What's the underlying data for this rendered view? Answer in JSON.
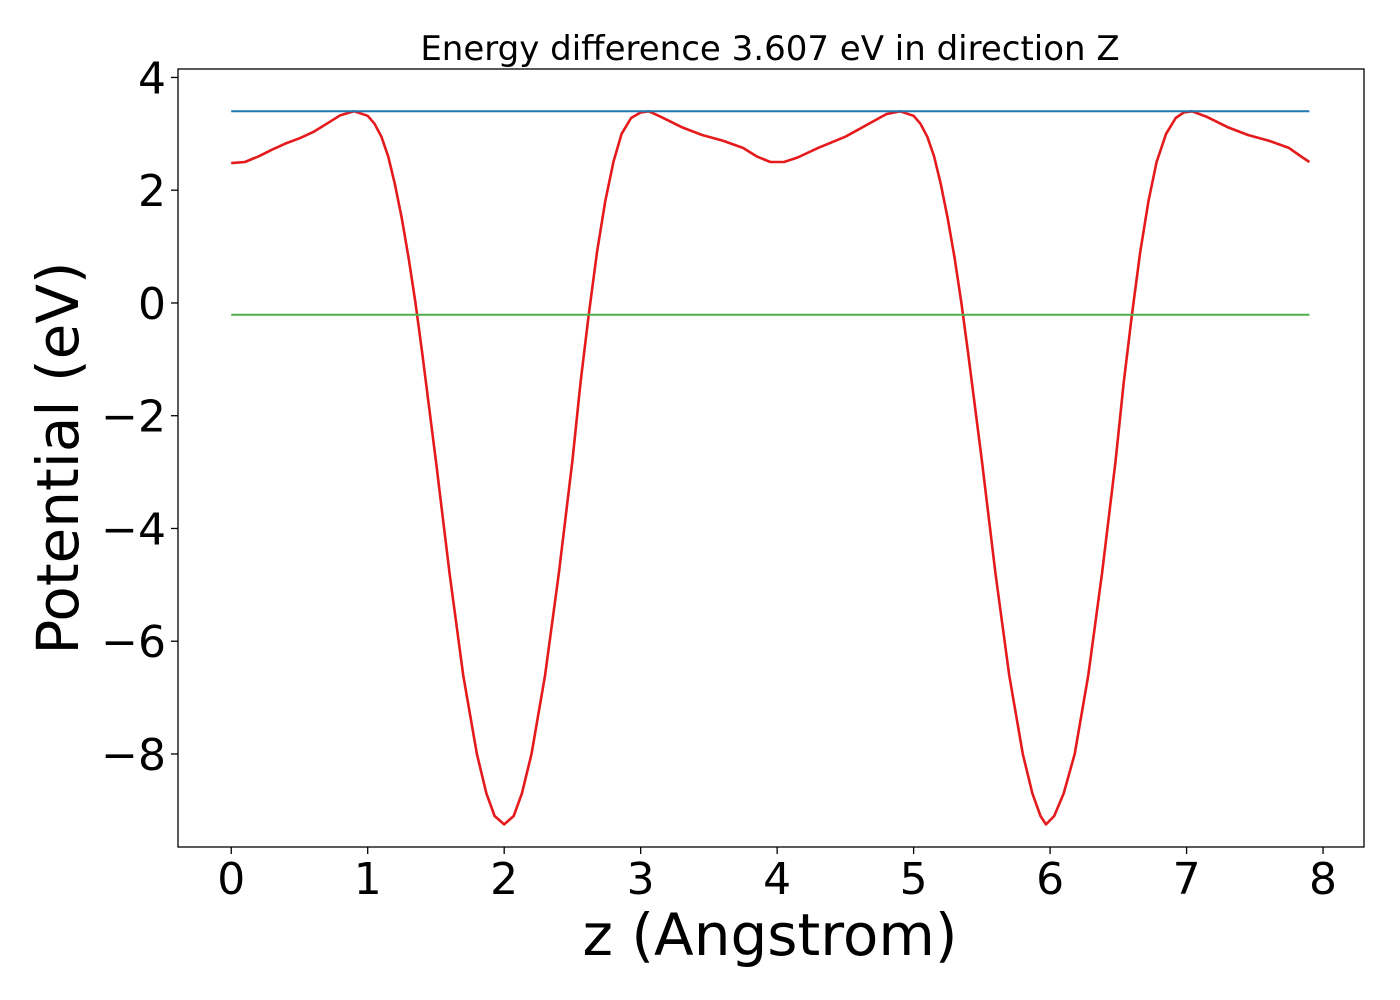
{
  "chart_data": {
    "type": "line",
    "title": "Energy difference 3.607 eV in direction Z",
    "xlabel": "z (Angstrom)",
    "ylabel": "Potential (eV)",
    "xlim": [
      -0.39,
      8.3
    ],
    "ylim": [
      -9.65,
      4.15
    ],
    "x_ticks": [
      0,
      1,
      2,
      3,
      4,
      5,
      6,
      7,
      8
    ],
    "x_tick_labels": [
      "0",
      "1",
      "2",
      "3",
      "4",
      "5",
      "6",
      "7",
      "8"
    ],
    "y_ticks": [
      4,
      2,
      0,
      -2,
      -4,
      -6,
      -8
    ],
    "y_tick_labels": [
      "4",
      "2",
      "0",
      "−2",
      "−4",
      "−6",
      "−8"
    ],
    "grid": false,
    "legend": "none",
    "series": [
      {
        "color": "#e41a1c",
        "points": [
          [
            0.0,
            2.48
          ],
          [
            0.1,
            2.5
          ],
          [
            0.2,
            2.6
          ],
          [
            0.3,
            2.72
          ],
          [
            0.4,
            2.83
          ],
          [
            0.5,
            2.92
          ],
          [
            0.6,
            3.03
          ],
          [
            0.7,
            3.18
          ],
          [
            0.8,
            3.33
          ],
          [
            0.9,
            3.4
          ],
          [
            1.0,
            3.32
          ],
          [
            1.05,
            3.18
          ],
          [
            1.1,
            2.95
          ],
          [
            1.15,
            2.6
          ],
          [
            1.2,
            2.1
          ],
          [
            1.25,
            1.5
          ],
          [
            1.3,
            0.8
          ],
          [
            1.35,
            0.0
          ],
          [
            1.4,
            -0.9
          ],
          [
            1.5,
            -2.8
          ],
          [
            1.6,
            -4.8
          ],
          [
            1.7,
            -6.6
          ],
          [
            1.8,
            -8.0
          ],
          [
            1.87,
            -8.7
          ],
          [
            1.93,
            -9.1
          ],
          [
            2.0,
            -9.25
          ],
          [
            2.07,
            -9.1
          ],
          [
            2.13,
            -8.7
          ],
          [
            2.2,
            -8.0
          ],
          [
            2.3,
            -6.6
          ],
          [
            2.4,
            -4.8
          ],
          [
            2.5,
            -2.8
          ],
          [
            2.56,
            -1.4
          ],
          [
            2.62,
            -0.2
          ],
          [
            2.68,
            0.9
          ],
          [
            2.74,
            1.8
          ],
          [
            2.8,
            2.5
          ],
          [
            2.86,
            3.0
          ],
          [
            2.93,
            3.28
          ],
          [
            3.0,
            3.38
          ],
          [
            3.06,
            3.4
          ],
          [
            3.15,
            3.3
          ],
          [
            3.3,
            3.12
          ],
          [
            3.45,
            2.98
          ],
          [
            3.6,
            2.88
          ],
          [
            3.75,
            2.75
          ],
          [
            3.85,
            2.6
          ],
          [
            3.95,
            2.5
          ],
          [
            4.05,
            2.5
          ],
          [
            4.15,
            2.58
          ],
          [
            4.3,
            2.75
          ],
          [
            4.5,
            2.95
          ],
          [
            4.65,
            3.15
          ],
          [
            4.8,
            3.35
          ],
          [
            4.9,
            3.4
          ],
          [
            5.0,
            3.32
          ],
          [
            5.05,
            3.18
          ],
          [
            5.1,
            2.95
          ],
          [
            5.15,
            2.6
          ],
          [
            5.2,
            2.1
          ],
          [
            5.25,
            1.5
          ],
          [
            5.3,
            0.8
          ],
          [
            5.35,
            0.0
          ],
          [
            5.4,
            -0.9
          ],
          [
            5.5,
            -2.8
          ],
          [
            5.6,
            -4.8
          ],
          [
            5.7,
            -6.6
          ],
          [
            5.8,
            -8.0
          ],
          [
            5.87,
            -8.7
          ],
          [
            5.93,
            -9.1
          ],
          [
            5.97,
            -9.25
          ],
          [
            6.03,
            -9.1
          ],
          [
            6.1,
            -8.7
          ],
          [
            6.18,
            -8.0
          ],
          [
            6.28,
            -6.6
          ],
          [
            6.38,
            -4.8
          ],
          [
            6.48,
            -2.8
          ],
          [
            6.54,
            -1.4
          ],
          [
            6.6,
            -0.2
          ],
          [
            6.66,
            0.9
          ],
          [
            6.72,
            1.8
          ],
          [
            6.78,
            2.5
          ],
          [
            6.85,
            3.0
          ],
          [
            6.92,
            3.28
          ],
          [
            6.98,
            3.38
          ],
          [
            7.04,
            3.4
          ],
          [
            7.15,
            3.3
          ],
          [
            7.3,
            3.12
          ],
          [
            7.45,
            2.98
          ],
          [
            7.6,
            2.88
          ],
          [
            7.75,
            2.75
          ],
          [
            7.85,
            2.58
          ],
          [
            7.9,
            2.5
          ]
        ]
      },
      {
        "color": "#1f77b4",
        "points": [
          [
            0.0,
            3.4
          ],
          [
            7.9,
            3.4
          ]
        ]
      },
      {
        "color": "#4daf4a",
        "points": [
          [
            0.0,
            -0.21
          ],
          [
            7.9,
            -0.21
          ]
        ]
      }
    ]
  }
}
